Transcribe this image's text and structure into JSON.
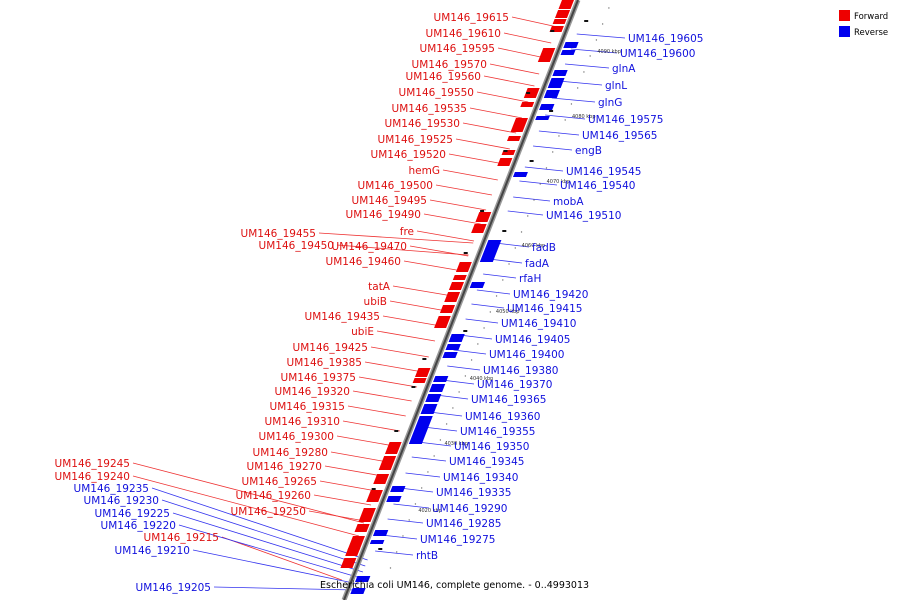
{
  "legend": {
    "forward_label": "Forward",
    "reverse_label": "Reverse",
    "forward_color": "#ee0000",
    "reverse_color": "#0000ee"
  },
  "caption": "Escherichia coli UM146, complete genome. - 0..4993013",
  "tick_labels": [
    "4090 kbp",
    "4080 kbp",
    "4070 kbp",
    "4060 kbp",
    "4050 kbp",
    "4040 kbp",
    "4030 kbp",
    "4020 kbp"
  ],
  "forward_genes": [
    "UM146_19615",
    "UM146_19610",
    "UM146_19595",
    "UM146_19570",
    "UM146_19560",
    "UM146_19550",
    "UM146_19535",
    "UM146_19530",
    "UM146_19525",
    "UM146_19520",
    "hemG",
    "UM146_19500",
    "UM146_19495",
    "UM146_19490",
    "UM146_19455",
    "fre",
    "UM146_19450",
    "UM146_19470",
    "UM146_19460",
    "tatA",
    "ubiB",
    "UM146_19435",
    "ubiE",
    "UM146_19425",
    "UM146_19385",
    "UM146_19375",
    "UM146_19320",
    "UM146_19315",
    "UM146_19310",
    "UM146_19300",
    "UM146_19280",
    "UM146_19270",
    "UM146_19265",
    "UM146_19260",
    "UM146_19250",
    "UM146_19245",
    "UM146_19240",
    "UM146_19215"
  ],
  "reverse_genes_right": [
    "UM146_19605",
    "UM146_19600",
    "glnA",
    "glnL",
    "glnG",
    "UM146_19575",
    "UM146_19565",
    "engB",
    "UM146_19545",
    "UM146_19540",
    "mobA",
    "UM146_19510",
    "fadB",
    "fadA",
    "rfaH",
    "UM146_19420",
    "UM146_19415",
    "UM146_19410",
    "UM146_19405",
    "UM146_19400",
    "UM146_19380",
    "UM146_19370",
    "UM146_19365",
    "UM146_19360",
    "UM146_19355",
    "UM146_19350",
    "UM146_19345",
    "UM146_19340",
    "UM146_19335",
    "UM146_19290",
    "UM146_19285",
    "UM146_19275",
    "rhtB"
  ],
  "reverse_genes_left": [
    "UM146_19235",
    "UM146_19230",
    "UM146_19225",
    "UM146_19220",
    "UM146_19210",
    "UM146_19205"
  ]
}
